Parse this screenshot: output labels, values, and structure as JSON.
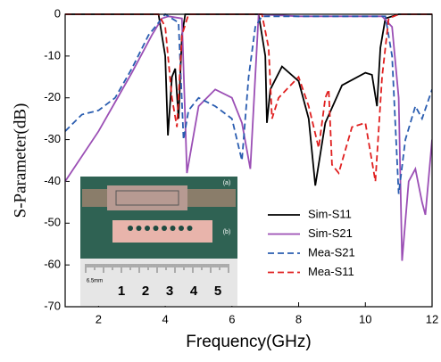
{
  "chart_data": {
    "type": "line",
    "xlabel": "Frequency(GHz)",
    "ylabel": "S-Parameter(dB)",
    "xlim": [
      1,
      12
    ],
    "ylim": [
      -70,
      0
    ],
    "xticks": [
      2,
      4,
      6,
      8,
      10,
      12
    ],
    "yticks": [
      0,
      -10,
      -20,
      -30,
      -40,
      -50,
      -60,
      -70
    ],
    "legend": "lower right",
    "series": [
      {
        "name": "Sim-S11",
        "color": "#000000",
        "dash": "solid",
        "x": [
          1,
          3.8,
          4.0,
          4.08,
          4.2,
          4.3,
          4.4,
          4.5,
          4.6,
          6.8,
          7.0,
          7.05,
          7.15,
          7.5,
          8.0,
          8.3,
          8.5,
          8.8,
          9.3,
          10.0,
          10.2,
          10.35,
          10.45,
          10.6,
          11,
          12
        ],
        "values": [
          0,
          0,
          -10,
          -29,
          -15,
          -13,
          -25,
          -5,
          0,
          0,
          -10,
          -26,
          -18,
          -12.5,
          -16,
          -25,
          -41,
          -26,
          -17,
          -14,
          -14.5,
          -22,
          -8,
          -1,
          0,
          0
        ]
      },
      {
        "name": "Sim-S21",
        "color": "#9b4fb5",
        "dash": "solid",
        "x": [
          1,
          2,
          3,
          3.6,
          3.9,
          4.1,
          4.5,
          4.65,
          5.0,
          5.5,
          6.0,
          6.3,
          6.55,
          6.8,
          8.0,
          10.5,
          10.8,
          11.0,
          11.1,
          11.3,
          11.5,
          11.7,
          11.8,
          12
        ],
        "values": [
          -40,
          -28,
          -14,
          -5,
          -1,
          -0.5,
          -1,
          -38,
          -22,
          -18,
          -20,
          -26,
          -37,
          0,
          -0.5,
          -0.5,
          -3,
          -20,
          -59,
          -40,
          -37,
          -45,
          -48,
          -30
        ]
      },
      {
        "name": "Mea-S21",
        "color": "#2a5db0",
        "dash": "dashed",
        "x": [
          1,
          1.5,
          2,
          2.5,
          3,
          3.5,
          3.9,
          4.0,
          4.4,
          4.55,
          4.7,
          5.0,
          5.5,
          6.0,
          6.3,
          6.5,
          6.7,
          6.9,
          10.6,
          10.8,
          11.0,
          11.2,
          11.5,
          11.7,
          12
        ],
        "values": [
          -28,
          -24,
          -23,
          -20,
          -13,
          -5,
          -1,
          0,
          -2,
          -30,
          -23,
          -20,
          -22,
          -25,
          -35,
          -15,
          -3,
          -0.5,
          -0.5,
          -10,
          -43,
          -30,
          -22,
          -25,
          -18
        ]
      },
      {
        "name": "Mea-S11",
        "color": "#e02020",
        "dash": "dashed",
        "x": [
          1,
          3.8,
          4.0,
          4.2,
          4.35,
          4.5,
          4.7,
          6.9,
          7.1,
          7.2,
          7.4,
          8.0,
          8.3,
          8.6,
          8.8,
          8.9,
          9.0,
          9.2,
          9.6,
          10.0,
          10.3,
          10.5,
          10.7,
          11,
          12
        ],
        "values": [
          0,
          0,
          -3,
          -20,
          -27,
          -5,
          0,
          0,
          -8,
          -25,
          -20,
          -15,
          -22,
          -32,
          -20,
          -18,
          -36,
          -38,
          -27,
          -26,
          -40,
          -15,
          -1,
          0,
          0
        ]
      }
    ],
    "inset": {
      "labels": [
        "(a)",
        "(b)"
      ],
      "scale": "6.5mm",
      "ruler": [
        "1",
        "2",
        "3",
        "4",
        "5"
      ]
    }
  }
}
